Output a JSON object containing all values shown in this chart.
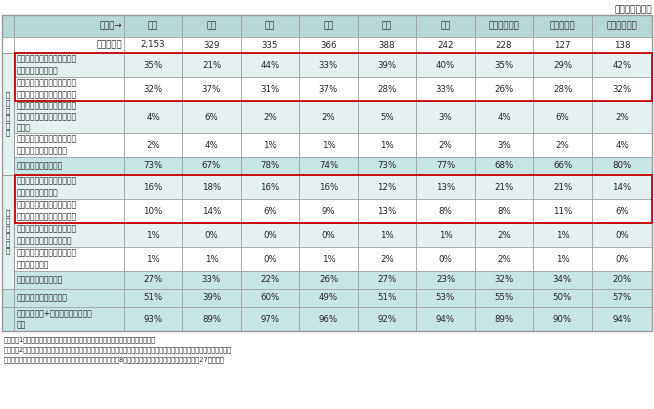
{
  "top_right_text": "（回答は１つ）",
  "header_labels": [
    "回答者→",
    "全体",
    "韓国",
    "中国",
    "台湾",
    "香港",
    "タイ",
    "シンガポール",
    "マレーシア",
    "インドネシア"
  ],
  "sample_vals": [
    "2,153",
    "329",
    "335",
    "366",
    "388",
    "242",
    "228",
    "127",
    "138"
  ],
  "rows": [
    {
      "label": "以前旅行したことがあり、今\n後もぜひ旅行したい",
      "values": [
        "35%",
        "21%",
        "44%",
        "33%",
        "39%",
        "40%",
        "35%",
        "29%",
        "42%"
      ],
      "red_box": true,
      "group": "ari"
    },
    {
      "label": "以前旅行したことがあり、今\n後も機会があれば旅行したい",
      "values": [
        "32%",
        "37%",
        "31%",
        "37%",
        "28%",
        "33%",
        "26%",
        "28%",
        "32%"
      ],
      "red_box": true,
      "group": "ari"
    },
    {
      "label": "以前旅行したことがあるが、\n今後はあまり旅行したいと思\nわない",
      "values": [
        "4%",
        "6%",
        "2%",
        "2%",
        "5%",
        "3%",
        "4%",
        "6%",
        "2%"
      ],
      "red_box": false,
      "group": "ari"
    },
    {
      "label": "以前旅行したことがあるが、\n今後は旅行しないと思う",
      "values": [
        "2%",
        "4%",
        "1%",
        "1%",
        "1%",
        "2%",
        "3%",
        "2%",
        "4%"
      ],
      "red_box": false,
      "group": "ari"
    },
    {
      "label": "（小計）訪問経験有り",
      "values": [
        "73%",
        "67%",
        "78%",
        "74%",
        "73%",
        "77%",
        "68%",
        "66%",
        "80%"
      ],
      "red_box": false,
      "group": "sub_ari"
    },
    {
      "label": "旅行したことはないが、今後\nはぜひ訪れてみたい",
      "values": [
        "16%",
        "18%",
        "16%",
        "16%",
        "12%",
        "13%",
        "21%",
        "21%",
        "14%"
      ],
      "red_box": true,
      "group": "nashi"
    },
    {
      "label": "旅行したことはないが、今後\nは機会があれば訪れてみたい",
      "values": [
        "10%",
        "14%",
        "6%",
        "9%",
        "13%",
        "8%",
        "8%",
        "11%",
        "6%"
      ],
      "red_box": true,
      "group": "nashi"
    },
    {
      "label": "旅行したことはなく、今後も\nあまり訪れたいと思わない",
      "values": [
        "1%",
        "0%",
        "0%",
        "0%",
        "1%",
        "1%",
        "2%",
        "1%",
        "0%"
      ],
      "red_box": false,
      "group": "nashi"
    },
    {
      "label": "旅行したことはなく、今後も\n訪れないと思う",
      "values": [
        "1%",
        "1%",
        "0%",
        "1%",
        "2%",
        "0%",
        "2%",
        "1%",
        "0%"
      ],
      "red_box": false,
      "group": "nashi"
    },
    {
      "label": "（小計）訪問経験なし",
      "values": [
        "27%",
        "33%",
        "22%",
        "26%",
        "27%",
        "23%",
        "32%",
        "34%",
        "20%"
      ],
      "red_box": false,
      "group": "sub_nashi"
    },
    {
      "label": "（小計）ぜひ旅行したい",
      "values": [
        "51%",
        "39%",
        "60%",
        "49%",
        "51%",
        "53%",
        "55%",
        "50%",
        "57%"
      ],
      "red_box": false,
      "group": "bottom"
    },
    {
      "label": "（小計）ぜひ+機会があれば旅行し\nたい",
      "values": [
        "93%",
        "89%",
        "97%",
        "96%",
        "92%",
        "94%",
        "89%",
        "90%",
        "94%"
      ],
      "red_box": false,
      "group": "bottom"
    }
  ],
  "grp_ari_label": "訪\n問\n経\n験\n有\nり",
  "grp_nashi_label": "訪\n問\n経\n験\nな\nし",
  "header_bg": "#b8d8d8",
  "alt_bg": "#e4f1f1",
  "white_bg": "#ffffff",
  "subtotal_bg": "#c8e5e5",
  "red_color": "#cc0000",
  "text_color": "#222222",
  "border_color": "#999999",
  "notes": [
    "（注）　1　「地方観光地」とは、「首都圏・都市圏から離れた地域」として質問。",
    "　　　　2　訪日経験者を対象に、直近の日本旅行において、日本の地方観光地の訪問経験有無及び今後の訪問意向を尋ねた。",
    "資料）（株）日本政策投資銀行・（公財）日本交通公社「アジア8地域・訪日外国人旅行者の意向調査（平成27年版）」"
  ]
}
